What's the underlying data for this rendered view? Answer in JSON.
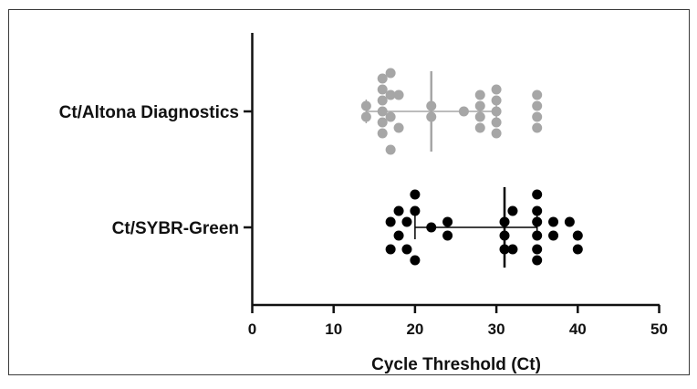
{
  "chart_data": {
    "type": "scatter",
    "subtype": "dot-plot",
    "orientation": "horizontal",
    "xlabel": "Cycle Threshold (Ct)",
    "xlim": [
      0,
      50
    ],
    "xticks": [
      0,
      10,
      20,
      30,
      40,
      50
    ],
    "grid": false,
    "legend": "none",
    "categories": [
      "Ct/Altona Diagnostics",
      "Ct/SYBR-Green"
    ],
    "series": [
      {
        "name": "Ct/Altona Diagnostics",
        "color": "#a6a6a6",
        "mean": 22,
        "sd_low": 14,
        "sd_high": 30,
        "points": [
          {
            "x": 14,
            "off": -0.5
          },
          {
            "x": 14,
            "off": 0.5
          },
          {
            "x": 16,
            "off": -3
          },
          {
            "x": 16,
            "off": -2
          },
          {
            "x": 16,
            "off": -1
          },
          {
            "x": 16,
            "off": 0
          },
          {
            "x": 16,
            "off": 1
          },
          {
            "x": 16,
            "off": 2
          },
          {
            "x": 17,
            "off": -3.5
          },
          {
            "x": 17,
            "off": -1.5
          },
          {
            "x": 17,
            "off": 0.5
          },
          {
            "x": 17,
            "off": 3.5
          },
          {
            "x": 18,
            "off": -1.5
          },
          {
            "x": 18,
            "off": 1.5
          },
          {
            "x": 22,
            "off": -0.5
          },
          {
            "x": 22,
            "off": 0.5
          },
          {
            "x": 26,
            "off": 0
          },
          {
            "x": 28,
            "off": -1.5
          },
          {
            "x": 28,
            "off": -0.5
          },
          {
            "x": 28,
            "off": 0.5
          },
          {
            "x": 28,
            "off": 1.5
          },
          {
            "x": 30,
            "off": -2
          },
          {
            "x": 30,
            "off": -1
          },
          {
            "x": 30,
            "off": 0
          },
          {
            "x": 30,
            "off": 1
          },
          {
            "x": 30,
            "off": 2
          },
          {
            "x": 35,
            "off": -1.5
          },
          {
            "x": 35,
            "off": -0.5
          },
          {
            "x": 35,
            "off": 0.5
          },
          {
            "x": 35,
            "off": 1.5
          }
        ]
      },
      {
        "name": "Ct/SYBR-Green",
        "color": "#000000",
        "mean": 31,
        "sd_low": 20,
        "sd_high": 35,
        "points": [
          {
            "x": 17,
            "off": -0.5
          },
          {
            "x": 17,
            "off": 2
          },
          {
            "x": 18,
            "off": -1.5
          },
          {
            "x": 18,
            "off": 0.75
          },
          {
            "x": 19,
            "off": -0.5
          },
          {
            "x": 19,
            "off": 2
          },
          {
            "x": 20,
            "off": -3
          },
          {
            "x": 20,
            "off": -1.5
          },
          {
            "x": 20,
            "off": 3
          },
          {
            "x": 22,
            "off": 0
          },
          {
            "x": 24,
            "off": -0.5
          },
          {
            "x": 24,
            "off": 0.75
          },
          {
            "x": 31,
            "off": -0.5
          },
          {
            "x": 31,
            "off": 0.75
          },
          {
            "x": 31,
            "off": 2
          },
          {
            "x": 32,
            "off": -1.5
          },
          {
            "x": 32,
            "off": 2
          },
          {
            "x": 35,
            "off": -3
          },
          {
            "x": 35,
            "off": -1.5
          },
          {
            "x": 35,
            "off": -0.5
          },
          {
            "x": 35,
            "off": 0.75
          },
          {
            "x": 35,
            "off": 2
          },
          {
            "x": 35,
            "off": 3
          },
          {
            "x": 37,
            "off": -0.5
          },
          {
            "x": 37,
            "off": 0.75
          },
          {
            "x": 39,
            "off": -0.5
          },
          {
            "x": 40,
            "off": 0.75
          },
          {
            "x": 40,
            "off": 2
          }
        ]
      }
    ]
  }
}
